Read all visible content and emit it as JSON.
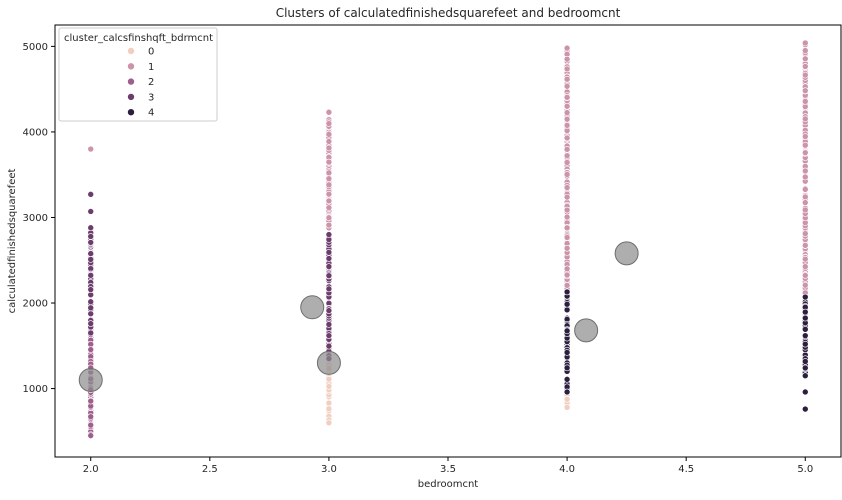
{
  "chart_data": {
    "type": "scatter",
    "title": "Clusters of calculatedfinishedsquarefeet and bedroomcnt",
    "xlabel": "bedroomcnt",
    "ylabel": "calculatedfinishedsquarefeet",
    "xlim": [
      1.85,
      5.15
    ],
    "ylim": [
      200,
      5250
    ],
    "xticks": [
      "2.0",
      "2.5",
      "3.0",
      "3.5",
      "4.0",
      "4.5",
      "5.0"
    ],
    "yticks": [
      "1000",
      "2000",
      "3000",
      "4000",
      "5000"
    ],
    "grid": false,
    "legend": {
      "title": "cluster_calcsfinshqft_bdrmcnt",
      "placement": "top-left",
      "entries": [
        "0",
        "1",
        "2",
        "3",
        "4"
      ]
    },
    "colors": {
      "0": "#f0cfc0",
      "1": "#cc93a9",
      "2": "#9e5f8e",
      "3": "#6c3c6c",
      "4": "#2c1e3e",
      "centroid": "#8c8c8c"
    },
    "series": [
      {
        "name": "0",
        "bedroomcnt": [
          3.0,
          4.0
        ],
        "sqft_ranges": [
          [
            600,
            1350
          ],
          [
            780,
            1000
          ]
        ]
      },
      {
        "name": "1",
        "bedroomcnt": [
          3.0,
          4.0,
          5.0
        ],
        "sqft_ranges": [
          [
            2800,
            4230
          ],
          [
            2100,
            4980
          ],
          [
            2050,
            5040
          ]
        ],
        "isolated_points": [
          [
            2.0,
            3800
          ]
        ]
      },
      {
        "name": "2",
        "bedroomcnt": [
          2.0
        ],
        "sqft_ranges": [
          [
            450,
            1650
          ]
        ]
      },
      {
        "name": "3",
        "bedroomcnt": [
          2.0,
          3.0
        ],
        "sqft_ranges": [
          [
            1650,
            2880
          ],
          [
            1350,
            2800
          ]
        ],
        "isolated_points": [
          [
            2.0,
            3270
          ],
          [
            2.0,
            3070
          ]
        ]
      },
      {
        "name": "4",
        "bedroomcnt": [
          4.0,
          5.0
        ],
        "sqft_ranges": [
          [
            960,
            2130
          ],
          [
            1150,
            2070
          ]
        ],
        "isolated_points": [
          [
            5.0,
            960
          ],
          [
            5.0,
            760
          ]
        ]
      }
    ],
    "centroids": [
      {
        "x": 2.0,
        "y": 1100
      },
      {
        "x": 2.93,
        "y": 1950
      },
      {
        "x": 3.0,
        "y": 1300
      },
      {
        "x": 4.08,
        "y": 1680
      },
      {
        "x": 4.25,
        "y": 2580
      }
    ]
  }
}
